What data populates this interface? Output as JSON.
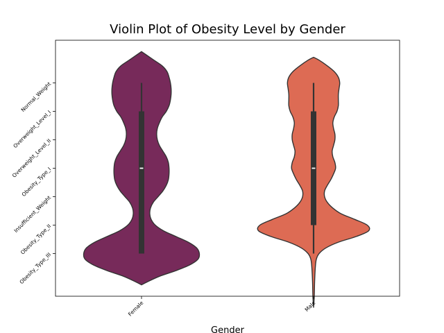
{
  "chart_data": {
    "type": "violin",
    "title": "Violin Plot of Obesity Level by Gender",
    "xlabel": "Gender",
    "ylabel": "",
    "categories": [
      "Female",
      "Male"
    ],
    "y_tick_labels": [
      "Normal_Weight",
      "Overweight_Level_I",
      "Overweight_Level_II",
      "Obesity_Type_I",
      "Insufficient_Weight",
      "Obesity_Type_II",
      "Obesity_Type_III"
    ],
    "y_tick_codes": [
      0,
      1,
      2,
      3,
      4,
      5,
      6
    ],
    "ylim": [
      -1.5,
      7.5
    ],
    "y_inverted": true,
    "grid": false,
    "legend": "none",
    "series": [
      {
        "category": "Female",
        "color": "#772a5a",
        "box": {
          "whisker_low": 0,
          "q1": 1,
          "median": 3,
          "q3": 6,
          "whisker_high": 6
        },
        "violin_range": [
          -1.1,
          7.1
        ],
        "density_profile": [
          [
            -1.1,
            0.0
          ],
          [
            -1.0,
            0.06
          ],
          [
            -0.8,
            0.18
          ],
          [
            -0.6,
            0.3
          ],
          [
            -0.4,
            0.37
          ],
          [
            -0.2,
            0.4
          ],
          [
            0.0,
            0.42
          ],
          [
            0.2,
            0.43
          ],
          [
            0.4,
            0.43
          ],
          [
            0.6,
            0.42
          ],
          [
            0.8,
            0.4
          ],
          [
            1.0,
            0.36
          ],
          [
            1.2,
            0.3
          ],
          [
            1.4,
            0.26
          ],
          [
            1.6,
            0.23
          ],
          [
            1.8,
            0.22
          ],
          [
            2.0,
            0.23
          ],
          [
            2.2,
            0.26
          ],
          [
            2.4,
            0.31
          ],
          [
            2.6,
            0.36
          ],
          [
            2.8,
            0.39
          ],
          [
            3.0,
            0.4
          ],
          [
            3.2,
            0.4
          ],
          [
            3.4,
            0.39
          ],
          [
            3.6,
            0.36
          ],
          [
            3.8,
            0.31
          ],
          [
            4.0,
            0.24
          ],
          [
            4.2,
            0.17
          ],
          [
            4.4,
            0.13
          ],
          [
            4.6,
            0.12
          ],
          [
            4.8,
            0.14
          ],
          [
            5.0,
            0.2
          ],
          [
            5.2,
            0.32
          ],
          [
            5.4,
            0.5
          ],
          [
            5.6,
            0.68
          ],
          [
            5.8,
            0.8
          ],
          [
            6.0,
            0.84
          ],
          [
            6.2,
            0.82
          ],
          [
            6.4,
            0.7
          ],
          [
            6.6,
            0.5
          ],
          [
            6.8,
            0.26
          ],
          [
            7.0,
            0.08
          ],
          [
            7.1,
            0.0
          ]
        ]
      },
      {
        "category": "Male",
        "color": "#dd6b54",
        "box": {
          "whisker_low": 0,
          "q1": 1,
          "median": 3,
          "q3": 5,
          "whisker_high": 6
        },
        "violin_range": [
          -0.9,
          7.9
        ],
        "density_profile": [
          [
            -0.9,
            0.0
          ],
          [
            -0.8,
            0.08
          ],
          [
            -0.6,
            0.2
          ],
          [
            -0.4,
            0.3
          ],
          [
            -0.2,
            0.36
          ],
          [
            0.0,
            0.38
          ],
          [
            0.2,
            0.37
          ],
          [
            0.4,
            0.36
          ],
          [
            0.6,
            0.36
          ],
          [
            0.8,
            0.36
          ],
          [
            1.0,
            0.34
          ],
          [
            1.2,
            0.3
          ],
          [
            1.4,
            0.28
          ],
          [
            1.6,
            0.29
          ],
          [
            1.8,
            0.31
          ],
          [
            2.0,
            0.31
          ],
          [
            2.2,
            0.29
          ],
          [
            2.4,
            0.27
          ],
          [
            2.6,
            0.28
          ],
          [
            2.8,
            0.31
          ],
          [
            3.0,
            0.32
          ],
          [
            3.2,
            0.29
          ],
          [
            3.4,
            0.25
          ],
          [
            3.6,
            0.2
          ],
          [
            3.8,
            0.16
          ],
          [
            4.0,
            0.16
          ],
          [
            4.2,
            0.2
          ],
          [
            4.4,
            0.28
          ],
          [
            4.6,
            0.4
          ],
          [
            4.8,
            0.6
          ],
          [
            5.0,
            0.78
          ],
          [
            5.2,
            0.8
          ],
          [
            5.4,
            0.62
          ],
          [
            5.6,
            0.36
          ],
          [
            5.8,
            0.18
          ],
          [
            6.0,
            0.08
          ],
          [
            6.2,
            0.04
          ],
          [
            6.5,
            0.025
          ],
          [
            7.0,
            0.015
          ],
          [
            7.5,
            0.01
          ],
          [
            7.9,
            0.0
          ]
        ]
      }
    ]
  }
}
